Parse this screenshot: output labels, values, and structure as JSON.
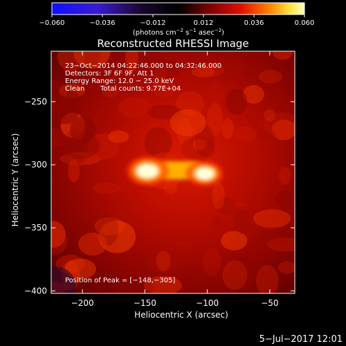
{
  "chart_data": {
    "type": "heatmap",
    "title": "Reconstructed RHESSI Image",
    "xlabel": "Heliocentric X (arcsec)",
    "ylabel": "Heliocentric Y (arcsec)",
    "xlim": [
      -225,
      -30
    ],
    "ylim": [
      -402,
      -210
    ],
    "x_ticks": [
      -200,
      -150,
      -100,
      -50
    ],
    "y_ticks": [
      -250,
      -300,
      -350,
      -400
    ],
    "x_tick_labels": [
      "−200",
      "−150",
      "−100",
      "−50"
    ],
    "y_tick_labels": [
      "−250",
      "−300",
      "−350",
      "−400"
    ],
    "colorbar": {
      "min": -0.06,
      "max": 0.06,
      "ticks": [
        -0.06,
        -0.036,
        -0.012,
        0.012,
        0.036,
        0.06
      ],
      "tick_labels": [
        "−0.060",
        "−0.036",
        "−0.012",
        "0.012",
        "0.036",
        "0.060"
      ],
      "units_main": "(photons cm",
      "units_exp1": "−2",
      "units_mid": " s",
      "units_exp2": "−1",
      "units_mid2": " asec",
      "units_exp3": "−2",
      "units_end": ")"
    },
    "sources": [
      {
        "x": -148,
        "y": -305,
        "peak": 0.06
      },
      {
        "x": -102,
        "y": -307,
        "peak": 0.052
      }
    ],
    "annotations": {
      "line1": "23−Oct−2014 04:22:46.000 to 04:32:46.000",
      "line2": "Detectors: 3F 6F 9F, Att 1",
      "line3": "Energy Range: 12.0 − 25.0 keV",
      "line4_a": "Clean",
      "line4_b": "Total counts: 9.77E+04",
      "peak": "Position of Peak = [−148,−305]"
    },
    "footer_date": "5−Jul−2017 12:01"
  },
  "colors": {
    "background": "#000000",
    "text": "#ffffff"
  }
}
